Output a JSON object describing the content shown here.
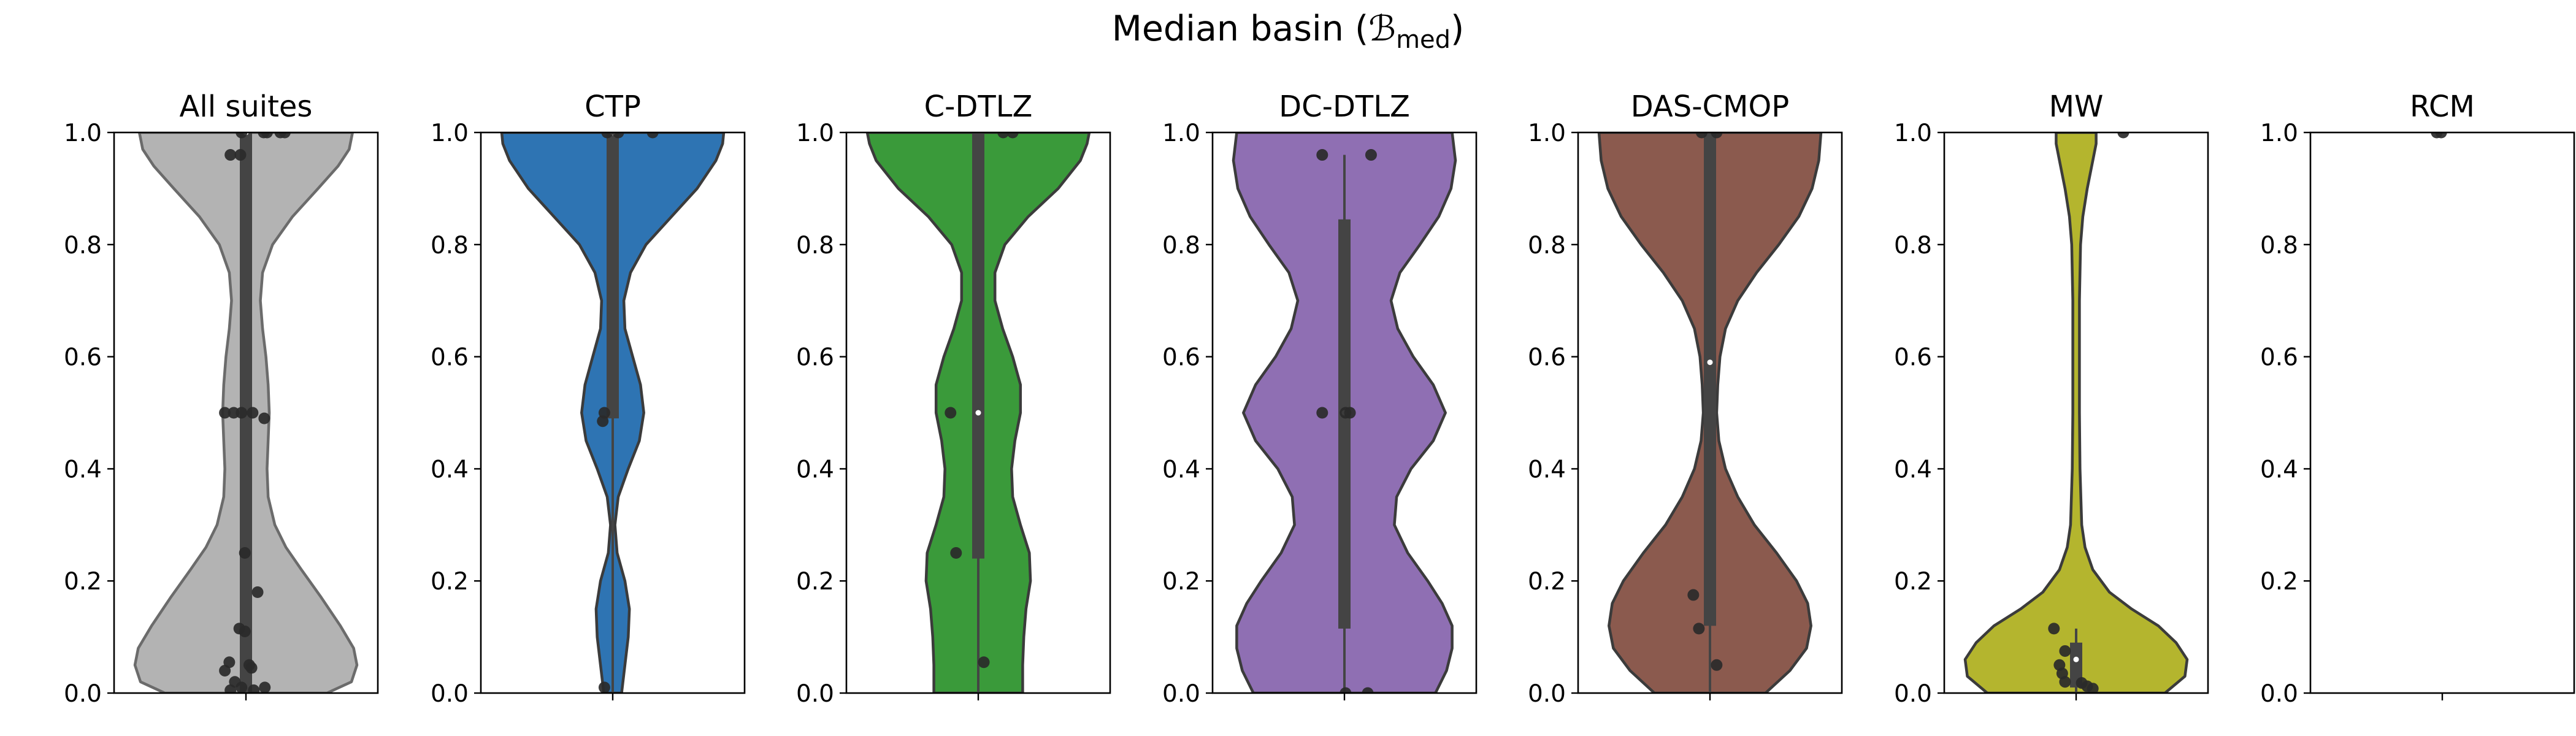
{
  "figure": {
    "title_main": "Median basin (",
    "title_symbol": "ℬ",
    "title_subscript": "med",
    "title_close": ")"
  },
  "chart_data": {
    "type": "violin",
    "ylim": [
      0,
      1
    ],
    "yticks": [
      0.0,
      0.2,
      0.4,
      0.6,
      0.8,
      1.0
    ],
    "ytick_labels": [
      "0.0",
      "0.2",
      "0.4",
      "0.6",
      "0.8",
      "1.0"
    ],
    "grid": false,
    "panels": [
      {
        "title": "All suites",
        "color": "#b3b3b3",
        "edge": "#6b6b6b",
        "profile": [
          [
            0.0,
            0.73
          ],
          [
            0.02,
            0.95
          ],
          [
            0.05,
            1.0
          ],
          [
            0.08,
            0.97
          ],
          [
            0.12,
            0.85
          ],
          [
            0.17,
            0.68
          ],
          [
            0.22,
            0.5
          ],
          [
            0.26,
            0.36
          ],
          [
            0.3,
            0.26
          ],
          [
            0.35,
            0.2
          ],
          [
            0.4,
            0.19
          ],
          [
            0.45,
            0.2
          ],
          [
            0.5,
            0.21
          ],
          [
            0.55,
            0.2
          ],
          [
            0.6,
            0.18
          ],
          [
            0.65,
            0.15
          ],
          [
            0.7,
            0.13
          ],
          [
            0.75,
            0.15
          ],
          [
            0.8,
            0.24
          ],
          [
            0.85,
            0.42
          ],
          [
            0.9,
            0.65
          ],
          [
            0.94,
            0.83
          ],
          [
            0.97,
            0.93
          ],
          [
            1.0,
            0.96
          ]
        ],
        "box": {
          "q1": 0.0,
          "median": 1.0,
          "q3": 1.0,
          "whisker_low": 0.0,
          "whisker_high": 1.0
        },
        "points": [
          [
            0.32,
            1.0
          ],
          [
            0.38,
            1.0
          ],
          [
            0.62,
            1.0
          ],
          [
            0.7,
            1.0
          ],
          [
            -0.08,
            1.0
          ],
          [
            -0.28,
            0.96
          ],
          [
            -0.1,
            0.96
          ],
          [
            -0.38,
            0.5
          ],
          [
            -0.22,
            0.5
          ],
          [
            -0.08,
            0.5
          ],
          [
            0.12,
            0.5
          ],
          [
            0.33,
            0.49
          ],
          [
            -0.02,
            0.25
          ],
          [
            0.21,
            0.18
          ],
          [
            -0.12,
            0.115
          ],
          [
            -0.02,
            0.11
          ],
          [
            -0.3,
            0.055
          ],
          [
            0.06,
            0.05
          ],
          [
            -0.38,
            0.04
          ],
          [
            0.1,
            0.045
          ],
          [
            -0.2,
            0.02
          ],
          [
            -0.08,
            0.01
          ],
          [
            0.14,
            0.005
          ],
          [
            0.34,
            0.01
          ],
          [
            -0.28,
            0.005
          ]
        ]
      },
      {
        "title": "CTP",
        "color": "#2e74b3",
        "edge": "#3b3b3b",
        "profile": [
          [
            0.0,
            0.08
          ],
          [
            0.05,
            0.11
          ],
          [
            0.1,
            0.14
          ],
          [
            0.15,
            0.15
          ],
          [
            0.2,
            0.11
          ],
          [
            0.25,
            0.04
          ],
          [
            0.3,
            0.02
          ],
          [
            0.35,
            0.05
          ],
          [
            0.4,
            0.14
          ],
          [
            0.45,
            0.24
          ],
          [
            0.5,
            0.28
          ],
          [
            0.55,
            0.25
          ],
          [
            0.6,
            0.18
          ],
          [
            0.65,
            0.11
          ],
          [
            0.7,
            0.1
          ],
          [
            0.75,
            0.16
          ],
          [
            0.8,
            0.3
          ],
          [
            0.85,
            0.53
          ],
          [
            0.9,
            0.76
          ],
          [
            0.95,
            0.93
          ],
          [
            0.98,
            0.99
          ],
          [
            1.0,
            1.0
          ]
        ],
        "box": {
          "q1": 0.49,
          "median": 1.0,
          "q3": 1.0,
          "whisker_low": 0.0,
          "whisker_high": 1.0
        },
        "points": [
          [
            -0.1,
            1.0
          ],
          [
            0.1,
            1.0
          ],
          [
            0.72,
            1.0
          ],
          [
            -0.15,
            0.5
          ],
          [
            -0.18,
            0.485
          ],
          [
            -0.15,
            0.01
          ]
        ]
      },
      {
        "title": "C-DTLZ",
        "color": "#3a9a3a",
        "edge": "#3b3b3b",
        "profile": [
          [
            0.0,
            0.4
          ],
          [
            0.05,
            0.4
          ],
          [
            0.1,
            0.41
          ],
          [
            0.15,
            0.43
          ],
          [
            0.2,
            0.47
          ],
          [
            0.25,
            0.46
          ],
          [
            0.3,
            0.38
          ],
          [
            0.35,
            0.31
          ],
          [
            0.4,
            0.3
          ],
          [
            0.45,
            0.33
          ],
          [
            0.5,
            0.38
          ],
          [
            0.55,
            0.38
          ],
          [
            0.6,
            0.31
          ],
          [
            0.65,
            0.22
          ],
          [
            0.7,
            0.15
          ],
          [
            0.75,
            0.15
          ],
          [
            0.8,
            0.24
          ],
          [
            0.85,
            0.45
          ],
          [
            0.9,
            0.72
          ],
          [
            0.95,
            0.92
          ],
          [
            0.98,
            0.98
          ],
          [
            1.0,
            1.0
          ]
        ],
        "box": {
          "q1": 0.24,
          "median": 0.5,
          "q3": 1.0,
          "whisker_low": 0.0,
          "whisker_high": 1.0
        },
        "points": [
          [
            0.45,
            1.0
          ],
          [
            0.62,
            1.0
          ],
          [
            -0.5,
            0.5
          ],
          [
            -0.4,
            0.25
          ],
          [
            0.1,
            0.055
          ]
        ]
      },
      {
        "title": "DC-DTLZ",
        "color": "#8f6fb3",
        "edge": "#3b3b3b",
        "profile": [
          [
            0.0,
            0.82
          ],
          [
            0.04,
            0.92
          ],
          [
            0.08,
            0.97
          ],
          [
            0.12,
            0.97
          ],
          [
            0.16,
            0.88
          ],
          [
            0.2,
            0.75
          ],
          [
            0.25,
            0.57
          ],
          [
            0.3,
            0.45
          ],
          [
            0.35,
            0.47
          ],
          [
            0.4,
            0.6
          ],
          [
            0.45,
            0.8
          ],
          [
            0.5,
            0.91
          ],
          [
            0.55,
            0.8
          ],
          [
            0.6,
            0.62
          ],
          [
            0.65,
            0.48
          ],
          [
            0.7,
            0.42
          ],
          [
            0.75,
            0.5
          ],
          [
            0.8,
            0.68
          ],
          [
            0.85,
            0.85
          ],
          [
            0.9,
            0.96
          ],
          [
            0.95,
            1.0
          ],
          [
            1.0,
            0.97
          ]
        ],
        "box": {
          "q1": 0.115,
          "median": 0.5,
          "q3": 0.845,
          "whisker_low": 0.0,
          "whisker_high": 0.96
        },
        "points": [
          [
            -0.4,
            0.96
          ],
          [
            0.48,
            0.96
          ],
          [
            -0.4,
            0.5
          ],
          [
            0.02,
            0.5
          ],
          [
            0.1,
            0.5
          ],
          [
            0.02,
            0.0
          ],
          [
            0.42,
            0.0
          ]
        ]
      },
      {
        "title": "DAS-CMOP",
        "color": "#8b5a4e",
        "edge": "#3b3b3b",
        "profile": [
          [
            0.0,
            0.5
          ],
          [
            0.04,
            0.72
          ],
          [
            0.08,
            0.87
          ],
          [
            0.12,
            0.91
          ],
          [
            0.16,
            0.88
          ],
          [
            0.2,
            0.78
          ],
          [
            0.25,
            0.6
          ],
          [
            0.3,
            0.4
          ],
          [
            0.35,
            0.25
          ],
          [
            0.4,
            0.14
          ],
          [
            0.45,
            0.08
          ],
          [
            0.5,
            0.06
          ],
          [
            0.55,
            0.07
          ],
          [
            0.6,
            0.09
          ],
          [
            0.65,
            0.14
          ],
          [
            0.7,
            0.25
          ],
          [
            0.75,
            0.42
          ],
          [
            0.8,
            0.62
          ],
          [
            0.85,
            0.8
          ],
          [
            0.9,
            0.92
          ],
          [
            0.95,
            0.98
          ],
          [
            1.0,
            1.0
          ]
        ],
        "box": {
          "q1": 0.12,
          "median": 0.59,
          "q3": 1.0,
          "whisker_low": 0.0,
          "whisker_high": 1.0
        },
        "points": [
          [
            -0.15,
            1.0
          ],
          [
            0.12,
            1.0
          ],
          [
            -0.3,
            0.175
          ],
          [
            -0.2,
            0.115
          ],
          [
            0.12,
            0.05
          ]
        ]
      },
      {
        "title": "MW",
        "color": "#b4b52e",
        "edge": "#3b3b3b",
        "profile": [
          [
            0.0,
            0.8
          ],
          [
            0.03,
            0.98
          ],
          [
            0.06,
            1.0
          ],
          [
            0.09,
            0.9
          ],
          [
            0.12,
            0.74
          ],
          [
            0.15,
            0.5
          ],
          [
            0.18,
            0.3
          ],
          [
            0.22,
            0.15
          ],
          [
            0.26,
            0.08
          ],
          [
            0.3,
            0.05
          ],
          [
            0.4,
            0.035
          ],
          [
            0.5,
            0.03
          ],
          [
            0.6,
            0.03
          ],
          [
            0.7,
            0.03
          ],
          [
            0.8,
            0.04
          ],
          [
            0.85,
            0.06
          ],
          [
            0.9,
            0.1
          ],
          [
            0.95,
            0.15
          ],
          [
            0.98,
            0.18
          ],
          [
            1.0,
            0.18
          ]
        ],
        "box": {
          "q1": 0.01,
          "median": 0.06,
          "q3": 0.09,
          "whisker_low": 0.0,
          "whisker_high": 0.115
        },
        "points": [
          [
            0.85,
            1.0
          ],
          [
            -0.4,
            0.115
          ],
          [
            -0.2,
            0.075
          ],
          [
            -0.3,
            0.05
          ],
          [
            -0.25,
            0.035
          ],
          [
            -0.2,
            0.02
          ],
          [
            0.1,
            0.018
          ],
          [
            0.2,
            0.012
          ],
          [
            0.3,
            0.008
          ]
        ]
      },
      {
        "title": "RCM",
        "color": "#17becf",
        "edge": "#3b3b3b",
        "profile": [],
        "box": null,
        "points": [
          [
            -0.1,
            1.0
          ],
          [
            -0.02,
            1.0
          ]
        ]
      }
    ]
  }
}
